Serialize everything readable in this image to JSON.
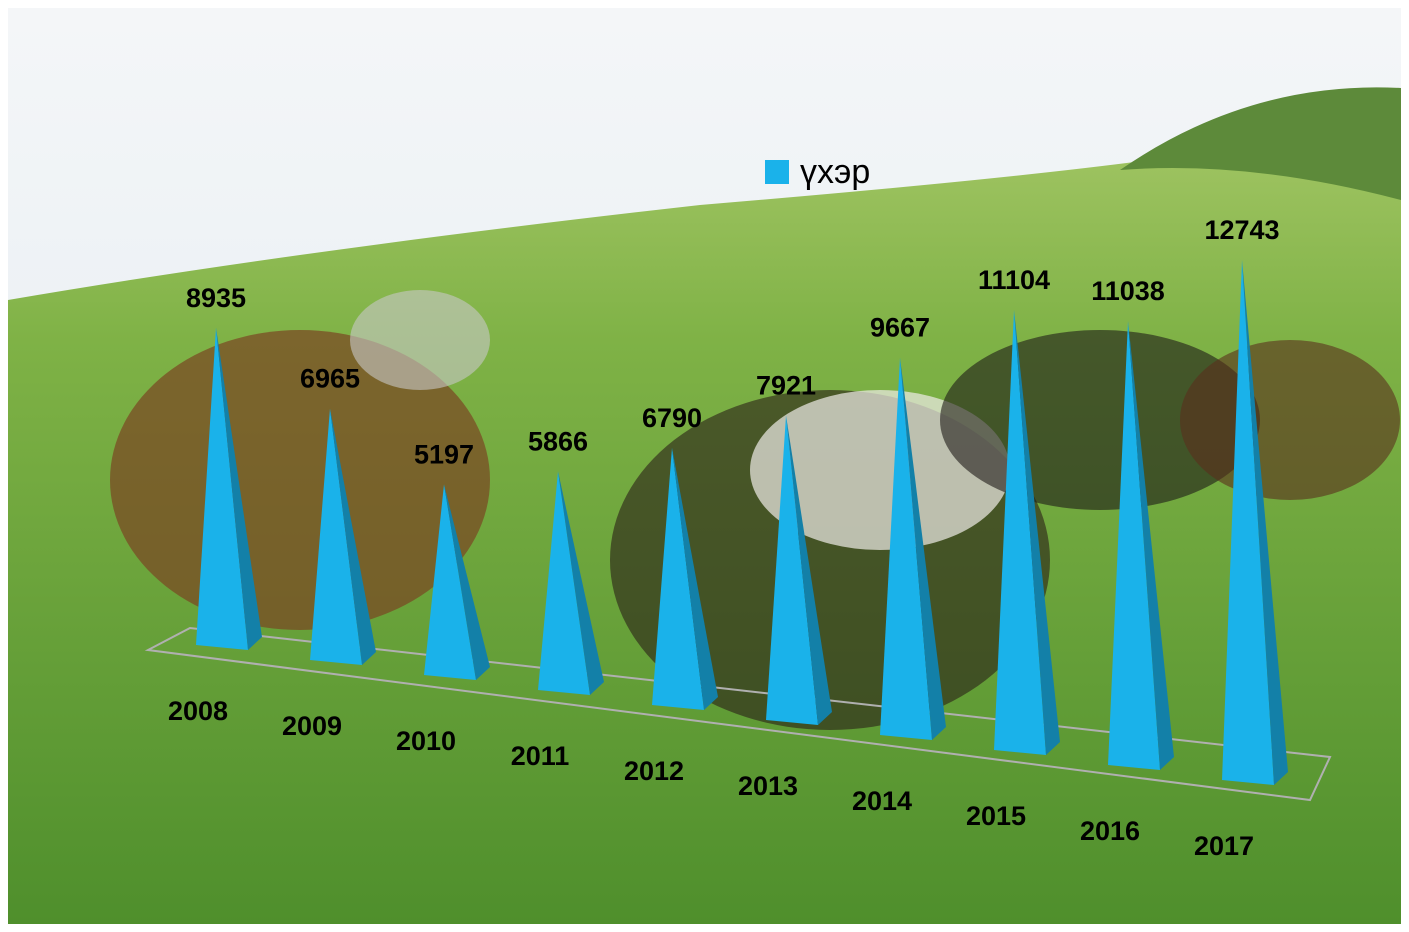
{
  "chart_data": {
    "type": "pyramid",
    "categories": [
      "2008",
      "2009",
      "2010",
      "2011",
      "2012",
      "2013",
      "2014",
      "2015",
      "2016",
      "2017"
    ],
    "series": [
      {
        "name": "үхэр",
        "color": "#1ab2ea",
        "values": [
          8935,
          6965,
          5197,
          5866,
          6790,
          7921,
          9667,
          11104,
          11038,
          12743
        ]
      }
    ],
    "legend": "top"
  }
}
